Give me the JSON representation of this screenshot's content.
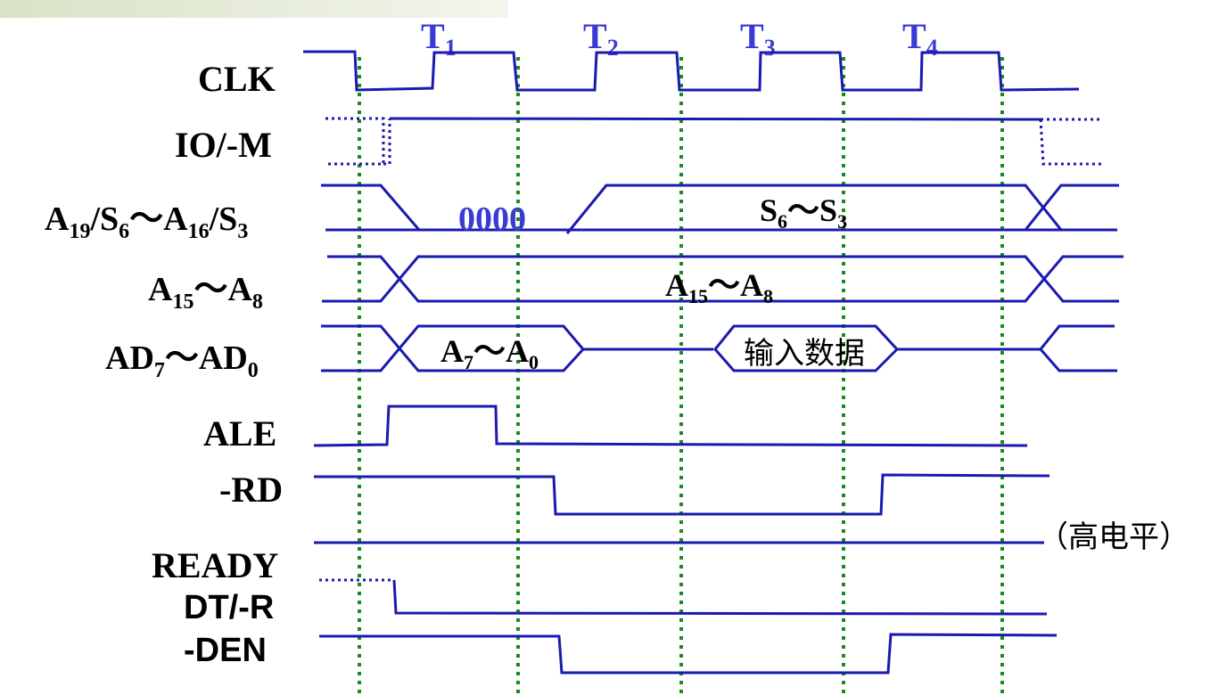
{
  "colors": {
    "wave": "#1a1ab0",
    "t_label": "#3a3ad6",
    "clock_edge": "#1a8a1a",
    "header_gradient_start": "#dfe6cf"
  },
  "states": {
    "t1": "T1",
    "t2": "T2",
    "t3": "T3",
    "t4": "T4"
  },
  "signals": {
    "clk": "CLK",
    "io_m": "IO/-M",
    "addr_status": "A19/S6～A16/S3",
    "addr_mid": "A15～A8",
    "addr_data": "AD7～AD0",
    "ale": "ALE",
    "rd": "-RD",
    "ready": "READY",
    "dt_r": "DT/-R",
    "den": "-DEN"
  },
  "bus_values": {
    "status_zero": "0000",
    "status": "S6～S3",
    "addr_mid": "A15～A8",
    "addr_low": "A7～A0",
    "input_data": "输入数据"
  },
  "notes": {
    "ready_level": "（高电平）"
  }
}
